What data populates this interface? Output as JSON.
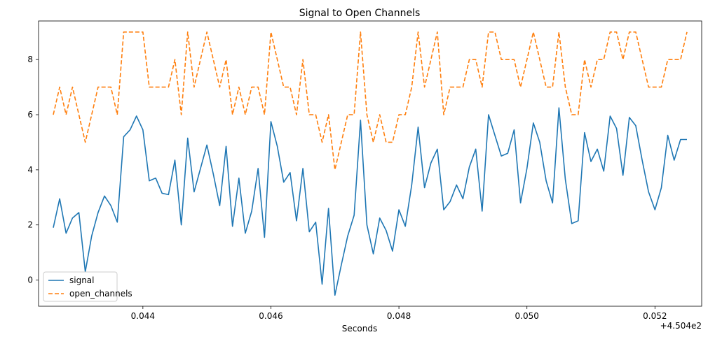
{
  "chart_data": {
    "type": "line",
    "title": "Signal to Open Channels",
    "xlabel": "Seconds",
    "ylabel": "",
    "x_offset_label": "+4.504e2",
    "x_start": 450.4426,
    "x_step": 0.0001,
    "xlim": [
      450.44237,
      450.45273
    ],
    "ylim": [
      -0.95,
      9.4
    ],
    "x_ticks": [
      450.444,
      450.446,
      450.448,
      450.45,
      450.452
    ],
    "x_tick_labels": [
      "0.044",
      "0.046",
      "0.048",
      "0.050",
      "0.052"
    ],
    "y_ticks": [
      0,
      2,
      4,
      6,
      8
    ],
    "y_tick_labels": [
      "0",
      "2",
      "4",
      "6",
      "8"
    ],
    "legend_position": "lower-left",
    "grid": false,
    "series": [
      {
        "name": "signal",
        "color": "#1f77b4",
        "style": "solid",
        "values": [
          1.9,
          2.95,
          1.7,
          2.25,
          2.45,
          0.3,
          1.6,
          2.45,
          3.05,
          2.7,
          2.1,
          5.2,
          5.45,
          5.95,
          5.45,
          3.6,
          3.7,
          3.15,
          3.1,
          4.35,
          2.0,
          5.15,
          3.2,
          4.05,
          4.9,
          3.85,
          2.7,
          4.85,
          1.95,
          3.7,
          1.7,
          2.5,
          4.05,
          1.55,
          5.75,
          4.85,
          3.55,
          3.9,
          2.15,
          4.05,
          1.75,
          2.1,
          -0.15,
          2.6,
          -0.55,
          0.55,
          1.6,
          2.35,
          5.8,
          2.0,
          0.95,
          2.25,
          1.8,
          1.05,
          2.55,
          1.95,
          3.45,
          5.55,
          3.35,
          4.25,
          4.75,
          2.55,
          2.85,
          3.45,
          2.95,
          4.1,
          4.75,
          2.5,
          6.0,
          5.25,
          4.5,
          4.6,
          5.45,
          2.8,
          4.05,
          5.7,
          5.0,
          3.6,
          2.8,
          6.25,
          3.65,
          2.05,
          2.15,
          5.35,
          4.3,
          4.75,
          3.95,
          5.95,
          5.5,
          3.8,
          5.9,
          5.6,
          4.35,
          3.2,
          2.55,
          3.35,
          5.25,
          4.35,
          5.1,
          5.1
        ]
      },
      {
        "name": "open_channels",
        "color": "#ff7f0e",
        "style": "dashed",
        "values": [
          6,
          7,
          6,
          7,
          6,
          5,
          6,
          7,
          7,
          7,
          6,
          9,
          9,
          9,
          9,
          7,
          7,
          7,
          7,
          8,
          6,
          9,
          7,
          8,
          9,
          8,
          7,
          8,
          6,
          7,
          6,
          7,
          7,
          6,
          9,
          8,
          7,
          7,
          6,
          8,
          6,
          6,
          5,
          6,
          4,
          5,
          6,
          6,
          9,
          6,
          5,
          6,
          5,
          5,
          6,
          6,
          7,
          9,
          7,
          8,
          9,
          6,
          7,
          7,
          7,
          8,
          8,
          7,
          9,
          9,
          8,
          8,
          8,
          7,
          8,
          9,
          8,
          7,
          7,
          9,
          7,
          6,
          6,
          8,
          7,
          8,
          8,
          9,
          9,
          8,
          9,
          9,
          8,
          7,
          7,
          7,
          8,
          8,
          8,
          9
        ]
      }
    ]
  }
}
